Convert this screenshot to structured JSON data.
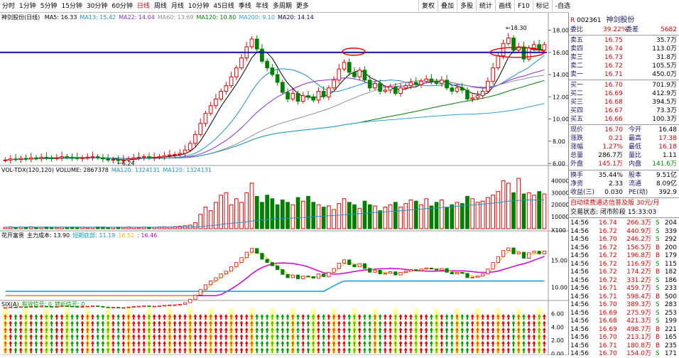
{
  "toolbar": {
    "periods": [
      "分时",
      "1分钟",
      "5分钟",
      "15分钟",
      "30分钟",
      "60分钟",
      "日线",
      "周线",
      "月线",
      "10分钟",
      "45日线",
      "季线",
      "年线",
      "多周期",
      "更多"
    ],
    "active_period": "日线",
    "tools": [
      "复权",
      "叠加",
      "多股",
      "统计",
      "画线",
      "F10",
      "标记",
      "-自选"
    ]
  },
  "main_panel": {
    "title": "神剑股份(日线)",
    "ma": [
      {
        "label": "MA5: 16.33",
        "color": "#000000"
      },
      {
        "label": "MA13: 15.42",
        "color": "#1e90c8"
      },
      {
        "label": "MA22: 14.04",
        "color": "#8a2be2"
      },
      {
        "label": "MA60: 13.69",
        "color": "#909090"
      },
      {
        "label": "MA120: 10.80",
        "color": "#008000"
      },
      {
        "label": "MA200: 9.10",
        "color": "#30a0e0"
      },
      {
        "label": "MA20: 14.14",
        "color": "#000080"
      }
    ],
    "y_ticks": [
      "18.00",
      "16.00",
      "14.00",
      "12.00",
      "10.00",
      "8.00",
      "6.00"
    ],
    "high_label": "18.30",
    "low_label": "6.24"
  },
  "vol_panel": {
    "legend": [
      {
        "label": "VOL-TDX(120,120) VOLUME: 2867378",
        "color": "#000000"
      },
      {
        "label": "MA120: 1324131",
        "color": "#1e90c8"
      },
      {
        "label": "MA120: 1324131",
        "color": "#1e90c8"
      }
    ],
    "y_ticks": [
      "40000",
      "30000",
      "20000",
      "10000",
      "X100"
    ]
  },
  "ind_panel": {
    "legend": [
      {
        "label": "花开富贵",
        "color": "#000000"
      },
      {
        "label": "主力成本: 13.90",
        "color": "#000000"
      },
      {
        "label": "短期底部: 11.19",
        "color": "#00a0c0"
      },
      {
        "label": "16.52",
        "color": "#e0c000"
      },
      {
        "label": ": 16.46",
        "color": "#d000d0"
      }
    ],
    "y_ticks": [
      "15.00",
      "10.00"
    ],
    "annotations": [
      "主力进场",
      "主力进场",
      "主力进场",
      "主力进场",
      "突破买点",
      "主力进场",
      "主力进场",
      "主力进场",
      "突破买点"
    ]
  },
  "six_panel": {
    "legend": [
      {
        "label": "SIX(A)",
        "color": "#000000"
      },
      {
        "label": "有效信号: 0",
        "color": "#00a000"
      },
      {
        "label": "转折信号: 0",
        "color": "#00a000"
      }
    ],
    "y_ticks": [
      "6.00",
      "4.00",
      "2.00",
      "0.00"
    ]
  },
  "chart_data": {
    "type": "candlestick",
    "y_range": [
      6,
      18.8
    ],
    "closes": [
      6.3,
      6.4,
      6.35,
      6.45,
      6.4,
      6.5,
      6.45,
      6.55,
      6.5,
      6.45,
      6.5,
      6.6,
      6.55,
      6.5,
      6.45,
      6.5,
      6.55,
      6.6,
      6.5,
      6.4,
      6.3,
      6.35,
      6.25,
      6.3,
      6.4,
      6.5,
      6.55,
      6.6,
      6.5,
      6.55,
      6.6,
      6.7,
      6.75,
      6.8,
      6.9,
      7.2,
      7.8,
      8.6,
      9.6,
      10.5,
      11.2,
      11.8,
      12.5,
      13.0,
      13.8,
      14.6,
      15.5,
      16.5,
      17.2,
      16.3,
      15.2,
      14.6,
      14.0,
      13.3,
      12.4,
      11.8,
      12.3,
      11.6,
      12.1,
      12.0,
      11.7,
      12.5,
      12.0,
      12.8,
      13.5,
      14.5,
      15.1,
      14.2,
      13.8,
      14.4,
      13.5,
      12.8,
      13.2,
      12.5,
      12.6,
      12.9,
      12.3,
      12.8,
      13.0,
      13.3,
      13.1,
      13.4,
      13.6,
      13.4,
      13.2,
      13.5,
      12.8,
      12.5,
      12.8,
      12.6,
      11.8,
      11.9,
      12.1,
      12.5,
      13.4,
      14.6,
      15.7,
      16.8,
      17.3,
      16.2,
      16.5,
      15.4,
      16.4,
      16.7,
      16.2,
      16.7
    ],
    "volumes": [
      1200,
      1500,
      1100,
      1400,
      1300,
      1600,
      1200,
      1300,
      1500,
      1100,
      1000,
      1300,
      1200,
      1400,
      1100,
      1300,
      1000,
      1200,
      1500,
      1400,
      1100,
      1200,
      1300,
      1100,
      1500,
      1200,
      1000,
      1400,
      1300,
      1200,
      1500,
      1600,
      1400,
      1700,
      2000,
      2500,
      3000,
      5000,
      12000,
      18000,
      15000,
      22000,
      28000,
      30000,
      20000,
      25000,
      22000,
      30000,
      38000,
      27000,
      22000,
      28000,
      25000,
      20000,
      24000,
      22000,
      20000,
      26000,
      23000,
      27000,
      22000,
      20000,
      18000,
      19000,
      16000,
      21000,
      25000,
      22000,
      20000,
      17000,
      23000,
      20000,
      19000,
      15000,
      18000,
      20000,
      22000,
      18000,
      21000,
      24000,
      23000,
      20000,
      25000,
      19000,
      22000,
      24000,
      18000,
      20000,
      22000,
      21000,
      27000,
      25000,
      22000,
      23000,
      26000,
      28000,
      31000,
      40000,
      38000,
      30000,
      42000,
      29000,
      30000,
      28000,
      31000,
      29000
    ],
    "volume_ylim": [
      0,
      45000
    ],
    "main_level": 16.0
  }
}
